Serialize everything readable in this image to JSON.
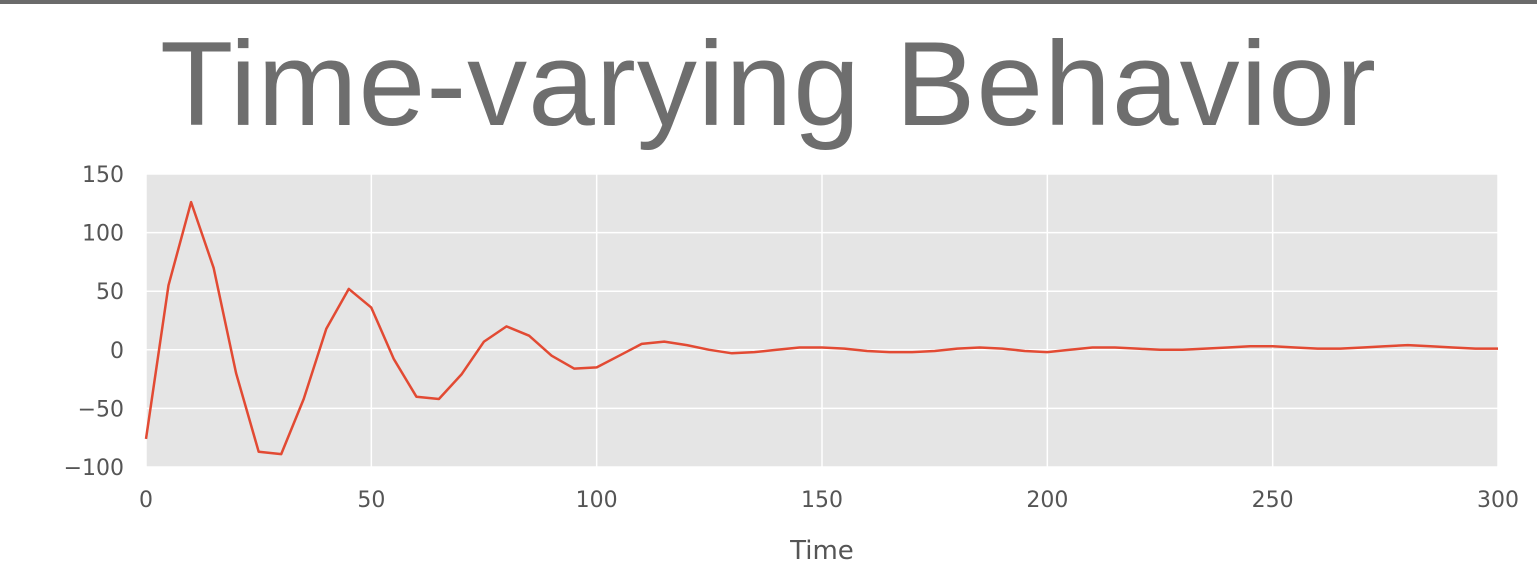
{
  "slide": {
    "title": "Time-varying Behavior"
  },
  "colors": {
    "plot_background": "#e5e5e5",
    "grid": "#ffffff",
    "line": "#e24a33",
    "text": "#555555",
    "title": "#6e6e6e",
    "top_rule": "#6b6b6b"
  },
  "chart_data": {
    "type": "line",
    "title": "",
    "xlabel": "Time",
    "ylabel": "",
    "xlim": [
      0,
      300
    ],
    "ylim": [
      -100,
      150
    ],
    "xticks": [
      0,
      50,
      100,
      150,
      200,
      250,
      300
    ],
    "yticks": [
      -100,
      -50,
      0,
      50,
      100,
      150
    ],
    "xtick_labels": [
      "0",
      "50",
      "100",
      "150",
      "200",
      "250",
      "300"
    ],
    "ytick_labels": [
      "−100",
      "−50",
      "0",
      "50",
      "100",
      "150"
    ],
    "grid": true,
    "legend": "none",
    "series": [
      {
        "x": [
          0,
          5,
          10,
          15,
          20,
          25,
          30,
          35,
          40,
          45,
          50,
          55,
          60,
          65,
          70,
          75,
          80,
          85,
          90,
          95,
          100,
          105,
          110,
          115,
          120,
          125,
          130,
          135,
          140,
          145,
          150,
          155,
          160,
          165,
          170,
          175,
          180,
          185,
          190,
          195,
          200,
          205,
          210,
          215,
          220,
          225,
          230,
          235,
          240,
          245,
          250,
          255,
          260,
          265,
          270,
          275,
          280,
          285,
          290,
          295,
          300
        ],
        "y": [
          -76,
          55,
          126,
          70,
          -20,
          -87,
          -89,
          -42,
          18,
          52,
          36,
          -8,
          -40,
          -42,
          -21,
          7,
          20,
          12,
          -5,
          -16,
          -15,
          -5,
          5,
          7,
          4,
          0,
          -3,
          -2,
          0,
          2,
          2,
          1,
          -1,
          -2,
          -2,
          -1,
          1,
          2,
          1,
          -1,
          -2,
          0,
          2,
          2,
          1,
          0,
          0,
          1,
          2,
          3,
          3,
          2,
          1,
          1,
          2,
          3,
          4,
          3,
          2,
          1,
          1
        ]
      }
    ]
  }
}
